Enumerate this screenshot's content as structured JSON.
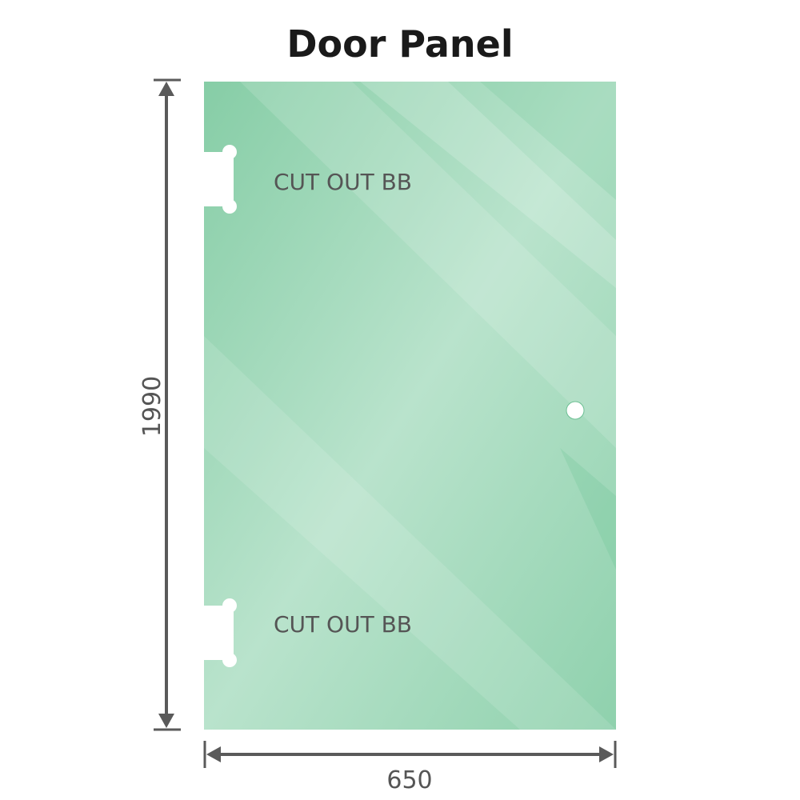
{
  "title": "Door Panel",
  "labels": {
    "cutout_top": "CUT OUT BB",
    "cutout_bottom": "CUT OUT BB"
  },
  "dimensions": {
    "height": "1990",
    "width": "650"
  },
  "colors": {
    "glass": "#7fcaa2",
    "glass_light": "#b8e3cb",
    "dimension_line": "#5a5a5a"
  }
}
